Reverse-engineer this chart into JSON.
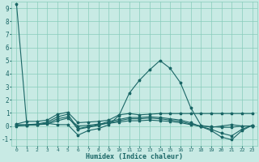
{
  "xlabel": "Humidex (Indice chaleur)",
  "xlim": [
    -0.5,
    23.5
  ],
  "ylim": [
    -1.5,
    9.5
  ],
  "xticks": [
    0,
    1,
    2,
    3,
    4,
    5,
    6,
    7,
    8,
    9,
    10,
    11,
    12,
    13,
    14,
    15,
    16,
    17,
    18,
    19,
    20,
    21,
    22,
    23
  ],
  "yticks": [
    -1,
    0,
    1,
    2,
    3,
    4,
    5,
    6,
    7,
    8,
    9
  ],
  "bg_color": "#c8eae4",
  "grid_color": "#88ccbb",
  "line_color": "#1a6666",
  "lines": [
    [
      9.3,
      0.1,
      0.1,
      0.2,
      0.1,
      0.1,
      -0.7,
      -0.35,
      -0.2,
      0.1,
      0.8,
      2.5,
      3.5,
      4.3,
      5.0,
      4.4,
      3.3,
      1.4,
      0.05,
      -0.1,
      0.0,
      0.1,
      0.0,
      0.0
    ],
    [
      0.15,
      0.35,
      0.35,
      0.45,
      0.9,
      1.05,
      0.25,
      0.3,
      0.35,
      0.45,
      0.85,
      0.95,
      0.85,
      0.9,
      0.95,
      0.95,
      0.95,
      0.95,
      0.95,
      0.95,
      0.95,
      0.95,
      0.95,
      0.95
    ],
    [
      0.1,
      0.1,
      0.15,
      0.3,
      0.7,
      0.9,
      -0.2,
      -0.05,
      0.1,
      0.35,
      0.5,
      0.65,
      0.65,
      0.7,
      0.65,
      0.55,
      0.45,
      0.25,
      -0.05,
      -0.35,
      -0.85,
      -1.05,
      -0.35,
      0.05
    ],
    [
      0.05,
      0.05,
      0.1,
      0.2,
      0.55,
      0.7,
      -0.25,
      -0.1,
      0.05,
      0.25,
      0.4,
      0.55,
      0.55,
      0.6,
      0.55,
      0.45,
      0.35,
      0.15,
      -0.05,
      -0.25,
      -0.55,
      -0.75,
      -0.25,
      0.05
    ],
    [
      0.0,
      0.05,
      0.1,
      0.15,
      0.4,
      0.6,
      0.0,
      0.05,
      0.15,
      0.2,
      0.3,
      0.4,
      0.4,
      0.45,
      0.4,
      0.35,
      0.25,
      0.1,
      0.0,
      -0.05,
      -0.1,
      -0.1,
      0.0,
      0.0
    ]
  ]
}
